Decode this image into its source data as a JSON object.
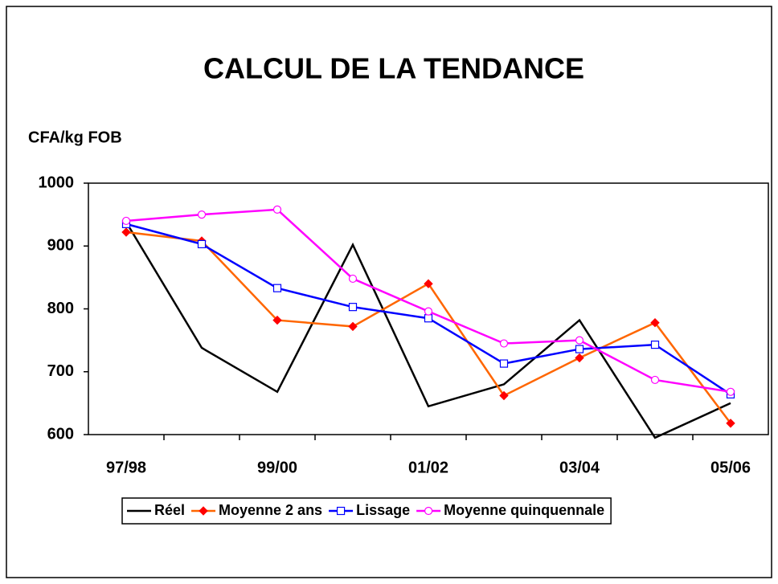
{
  "chart_data": {
    "type": "line",
    "title": "CALCUL DE LA TENDANCE",
    "y_label": "CFA/kg FOB",
    "categories": [
      "97/98",
      null,
      "99/00",
      null,
      "01/02",
      null,
      "03/04",
      null,
      "05/06"
    ],
    "series": [
      {
        "name": "Réel",
        "color": "#000000",
        "marker": "none",
        "values": [
          938,
          738,
          668,
          902,
          645,
          680,
          782,
          595,
          650
        ]
      },
      {
        "name": "Moyenne 2 ans",
        "color": "#ff6600",
        "marker": "diamond",
        "values": [
          922,
          908,
          782,
          772,
          840,
          662,
          722,
          778,
          618
        ]
      },
      {
        "name": "Lissage",
        "color": "#0000ff",
        "marker": "square",
        "values": [
          935,
          903,
          833,
          803,
          785,
          713,
          736,
          743,
          664
        ]
      },
      {
        "name": "Moyenne quinquennale",
        "color": "#ff00ff",
        "marker": "circle",
        "values": [
          940,
          950,
          958,
          848,
          796,
          745,
          750,
          687,
          668
        ]
      }
    ],
    "ylim": [
      600,
      1000
    ],
    "yticks": [
      600,
      700,
      800,
      900,
      1000
    ],
    "grid": false,
    "legend": "bottom"
  }
}
